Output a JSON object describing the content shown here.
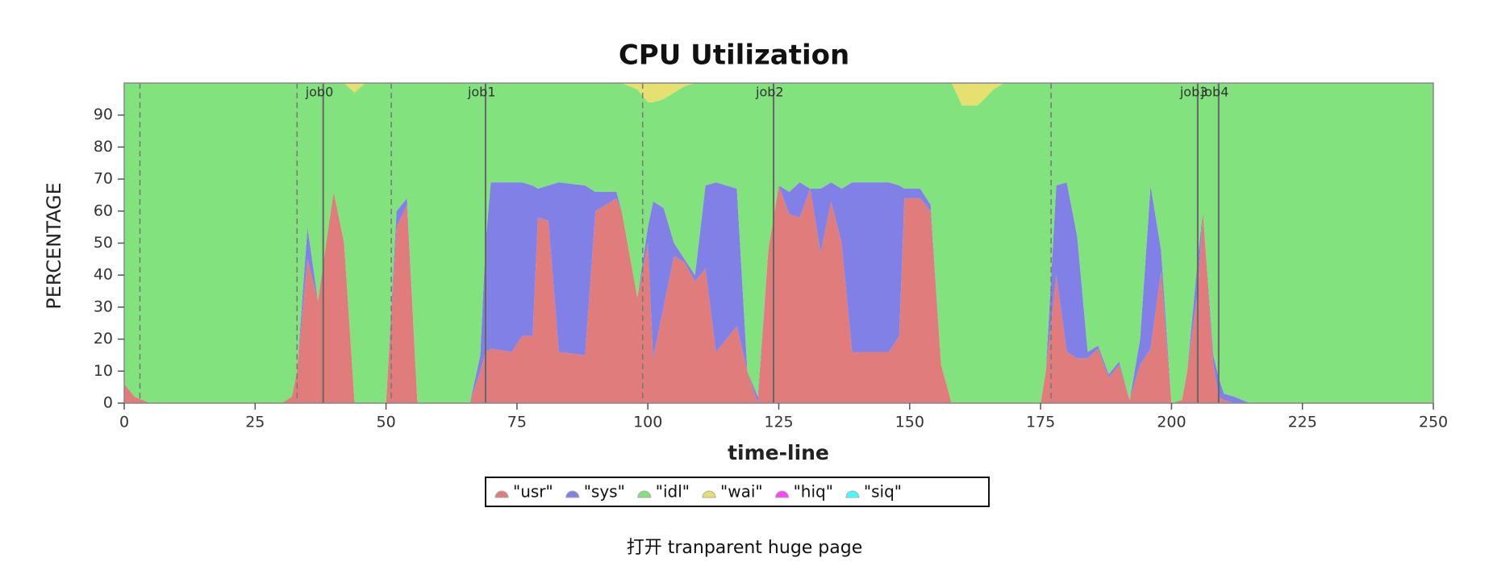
{
  "chart_data": {
    "type": "stacked_area",
    "title": "CPU Utilization",
    "xlabel": "time-line",
    "ylabel": "PERCENTAGE",
    "xlim": [
      0,
      250
    ],
    "xticks": [
      0,
      25,
      50,
      75,
      100,
      125,
      150,
      175,
      200,
      225,
      250
    ],
    "ylim": [
      0,
      100
    ],
    "yticks": [
      0,
      10,
      20,
      30,
      40,
      50,
      60,
      70,
      80,
      90
    ],
    "x": [
      0,
      2,
      5,
      30,
      32,
      33,
      35,
      37,
      39,
      40,
      42,
      44,
      46,
      50,
      52,
      54,
      56,
      66,
      68,
      69,
      70,
      74,
      76,
      78,
      79,
      81,
      83,
      88,
      90,
      94,
      95,
      98,
      100,
      101,
      103,
      105,
      107,
      109,
      111,
      113,
      117,
      119,
      121,
      123,
      125,
      127,
      129,
      131,
      133,
      135,
      137,
      139,
      146,
      148,
      149,
      152,
      154,
      156,
      158,
      160,
      163,
      166,
      168,
      175,
      176,
      178,
      180,
      182,
      184,
      186,
      188,
      190,
      192,
      194,
      196,
      198,
      200,
      202,
      203,
      205,
      206,
      208,
      209,
      210,
      212,
      215,
      250
    ],
    "series": [
      {
        "name": "\"usr\"",
        "color": "#e07c7c",
        "values": [
          6,
          2,
          0,
          0,
          2,
          10,
          45,
          32,
          55,
          66,
          50,
          0,
          0,
          0,
          55,
          62,
          0,
          0,
          10,
          16,
          17,
          16,
          21,
          21,
          58,
          57,
          16,
          15,
          60,
          64,
          60,
          33,
          50,
          14,
          30,
          46,
          44,
          38,
          42,
          16,
          24,
          10,
          0,
          48,
          68,
          59,
          58,
          67,
          47,
          63,
          50,
          16,
          16,
          21,
          64,
          64,
          60,
          12,
          0,
          0,
          0,
          0,
          0,
          0,
          10,
          40,
          16,
          14,
          14,
          17,
          8,
          12,
          1,
          12,
          17,
          41,
          0,
          1,
          10,
          35,
          60,
          12,
          2,
          1,
          0,
          0,
          0
        ]
      },
      {
        "name": "\"sys\"",
        "color": "#8080e6",
        "values": [
          0,
          0,
          0,
          0,
          0,
          0,
          10,
          0,
          0,
          0,
          0,
          0,
          0,
          0,
          5,
          2,
          0,
          0,
          5,
          34,
          52,
          53,
          48,
          47,
          9,
          11,
          53,
          53,
          6,
          2,
          0,
          0,
          5,
          49,
          31,
          4,
          1,
          2,
          26,
          53,
          43,
          0,
          2,
          0,
          0,
          7,
          11,
          0,
          20,
          6,
          17,
          53,
          53,
          47,
          3,
          3,
          2,
          0,
          0,
          0,
          0,
          0,
          0,
          0,
          0,
          28,
          53,
          38,
          2,
          1,
          1,
          1,
          0,
          8,
          51,
          7,
          0,
          0,
          0,
          10,
          0,
          3,
          6,
          2,
          2,
          0,
          0
        ]
      },
      {
        "name": "\"idl\"",
        "color": "#82e27e",
        "values": [
          94,
          98,
          100,
          100,
          98,
          90,
          45,
          68,
          45,
          34,
          50,
          97,
          100,
          100,
          40,
          36,
          100,
          100,
          85,
          50,
          31,
          31,
          31,
          32,
          33,
          32,
          31,
          32,
          34,
          34,
          40,
          65,
          39,
          31,
          34,
          47,
          54,
          60,
          32,
          31,
          33,
          90,
          98,
          52,
          32,
          34,
          31,
          33,
          33,
          31,
          33,
          31,
          31,
          32,
          33,
          33,
          38,
          88,
          100,
          93,
          93,
          98,
          100,
          100,
          90,
          32,
          31,
          48,
          84,
          82,
          91,
          87,
          99,
          80,
          32,
          52,
          100,
          99,
          90,
          55,
          40,
          85,
          92,
          97,
          98,
          100,
          100
        ]
      },
      {
        "name": "\"wai\"",
        "color": "#e6e070",
        "values": [
          0,
          0,
          0,
          0,
          0,
          0,
          0,
          0,
          0,
          0,
          0,
          3,
          0,
          0,
          0,
          0,
          0,
          0,
          0,
          0,
          0,
          0,
          0,
          0,
          0,
          0,
          0,
          0,
          0,
          0,
          0,
          2,
          6,
          6,
          5,
          3,
          1,
          0,
          0,
          0,
          0,
          0,
          0,
          0,
          0,
          0,
          0,
          0,
          0,
          0,
          0,
          0,
          0,
          0,
          0,
          0,
          0,
          0,
          0,
          7,
          7,
          2,
          0,
          0,
          0,
          0,
          0,
          0,
          0,
          0,
          0,
          0,
          0,
          0,
          0,
          0,
          0,
          0,
          0,
          0,
          0,
          0,
          0,
          0,
          0,
          0,
          0
        ]
      },
      {
        "name": "\"hiq\"",
        "color": "#ff44ff",
        "values": [
          0,
          0,
          0,
          0,
          0,
          0,
          0,
          0,
          0,
          0,
          0,
          0,
          0,
          0,
          0,
          0,
          0,
          0,
          0,
          0,
          0,
          0,
          0,
          0,
          0,
          0,
          0,
          0,
          0,
          0,
          0,
          0,
          0,
          0,
          0,
          0,
          0,
          0,
          0,
          0,
          0,
          0,
          0,
          0,
          0,
          0,
          0,
          0,
          0,
          0,
          0,
          0,
          0,
          0,
          0,
          0,
          0,
          0,
          0,
          0,
          0,
          0,
          0,
          0,
          0,
          0,
          0,
          0,
          0,
          0,
          0,
          0,
          0,
          0,
          0,
          0,
          0,
          0,
          0,
          0,
          0,
          0,
          0,
          0,
          0,
          0,
          0
        ]
      },
      {
        "name": "\"siq\"",
        "color": "#44ffff",
        "values": [
          0,
          0,
          0,
          0,
          0,
          0,
          0,
          0,
          0,
          0,
          0,
          0,
          0,
          0,
          0,
          0,
          0,
          0,
          0,
          0,
          0,
          0,
          0,
          0,
          0,
          0,
          0,
          0,
          0,
          0,
          0,
          0,
          0,
          0,
          0,
          0,
          0,
          0,
          0,
          0,
          0,
          0,
          0,
          0,
          0,
          0,
          0,
          0,
          0,
          0,
          0,
          0,
          0,
          0,
          0,
          0,
          0,
          0,
          0,
          0,
          0,
          0,
          0,
          0,
          0,
          0,
          0,
          0,
          0,
          0,
          0,
          0,
          0,
          0,
          0,
          0,
          0,
          0,
          0,
          0,
          0,
          0,
          0,
          0,
          0,
          0,
          0
        ]
      }
    ],
    "annotations": [
      {
        "x": 38,
        "label": "job0"
      },
      {
        "x": 69,
        "label": "job1"
      },
      {
        "x": 124,
        "label": "job2"
      },
      {
        "x": 205,
        "label": "job3"
      },
      {
        "x": 209,
        "label": "job4"
      }
    ],
    "dashed_lines": [
      3,
      33,
      51,
      99,
      177
    ],
    "caption": "打开 tranparent huge page"
  }
}
